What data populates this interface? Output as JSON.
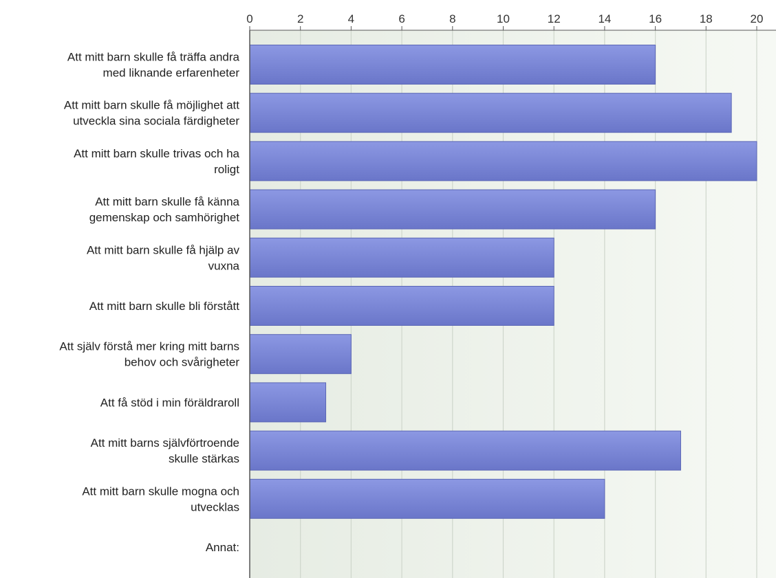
{
  "chart_data": {
    "type": "bar",
    "orientation": "horizontal",
    "categories": [
      [
        "Att mitt barn skulle få träffa andra",
        "med liknande erfarenheter"
      ],
      [
        "Att mitt barn skulle få möjlighet att",
        "utveckla sina sociala färdigheter"
      ],
      [
        "Att mitt barn skulle trivas och ha",
        "roligt"
      ],
      [
        "Att mitt barn skulle få känna",
        "gemenskap och samhörighet"
      ],
      [
        "Att mitt barn skulle få hjälp av",
        "vuxna"
      ],
      [
        "Att mitt barn skulle bli förstått"
      ],
      [
        "Att själv förstå mer kring mitt barns",
        "behov och svårigheter"
      ],
      [
        "Att få stöd i min föräldraroll"
      ],
      [
        "Att mitt barns självförtroende",
        "skulle stärkas"
      ],
      [
        "Att mitt barn skulle mogna och",
        "utvecklas"
      ],
      [
        "Annat:"
      ]
    ],
    "values": [
      16,
      19,
      20,
      16,
      12,
      12,
      4,
      3,
      17,
      14,
      0
    ],
    "xlim": [
      0,
      20
    ],
    "xticks": [
      0,
      2,
      4,
      6,
      8,
      10,
      12,
      14,
      16,
      18,
      20
    ],
    "axis_position": "top",
    "grid": true,
    "title": "",
    "xlabel": "",
    "ylabel": ""
  },
  "colors": {
    "bar_top": "#8c98e3",
    "bar_bottom": "#6a76c9",
    "bar_edge": "#5a66b5",
    "plot_bg": "#eef3ec",
    "grid": "#cfd6cc",
    "axis": "#555555"
  }
}
